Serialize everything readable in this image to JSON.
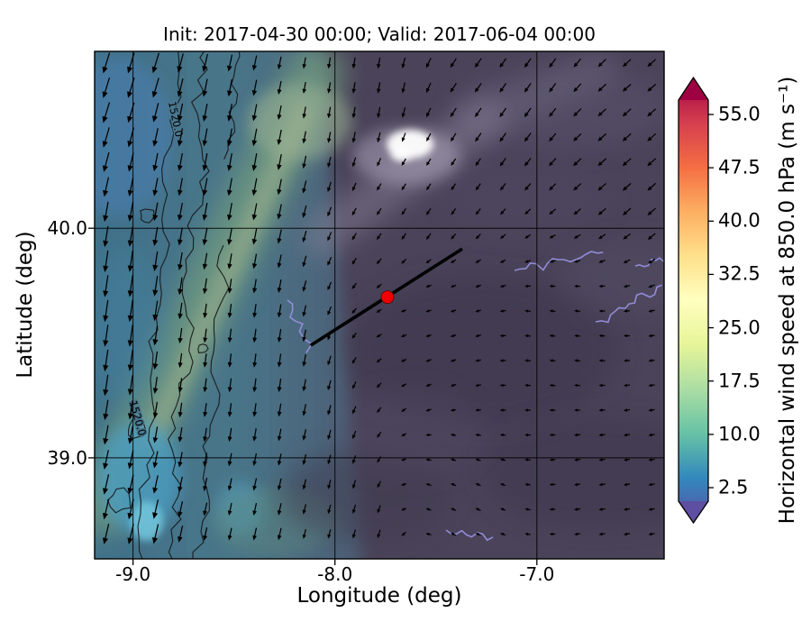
{
  "figure": {
    "title": "Init: 2017-04-30 00:00; Valid: 2017-06-04 00:00",
    "xlabel": "Longitude (deg)",
    "ylabel": "Latitude (deg)"
  },
  "chart_data": {
    "type": "heatmap",
    "title": "Init: 2017-04-30 00:00; Valid: 2017-06-04 00:00",
    "xlabel": "Longitude (deg)",
    "ylabel": "Latitude (deg)",
    "xlim": [
      -9.19,
      -6.37
    ],
    "ylim": [
      38.56,
      40.77
    ],
    "x_ticks": [
      -9.0,
      -8.0,
      -7.0
    ],
    "x_tick_labels": [
      "-9.0",
      "-8.0",
      "-7.0"
    ],
    "y_ticks": [
      39.0,
      40.0
    ],
    "y_tick_labels": [
      "39.0",
      "40.0"
    ],
    "grid": true,
    "field": "horizontal wind speed at 850.0 hPa",
    "colorbar": {
      "label": "Horizontal wind speed at 850.0 hPa (m s⁻¹)",
      "orientation": "vertical",
      "extend": "both",
      "ticks": [
        2.5,
        10.0,
        17.5,
        25.0,
        32.5,
        40.0,
        47.5,
        55.0
      ],
      "tick_labels": [
        "2.5",
        "10.0",
        "17.5",
        "25.0",
        "32.5",
        "40.0",
        "47.5",
        "55.0"
      ],
      "colors": [
        "#5e4fa2",
        "#3288bd",
        "#66c2a5",
        "#abdda4",
        "#e6f598",
        "#ffffbf",
        "#fee08b",
        "#fdae61",
        "#f46d43",
        "#d53e4f",
        "#9e0142"
      ]
    },
    "contour_labels": [
      "1520.0",
      "1520.0"
    ],
    "marker": {
      "lon": -7.74,
      "lat": 39.7,
      "color": "#f00000",
      "shape": "circle"
    },
    "cross_section": {
      "from": {
        "lon": -8.12,
        "lat": 39.49
      },
      "to": {
        "lon": -7.37,
        "lat": 39.91
      },
      "color": "#000000"
    },
    "map_colors": {
      "base_low_wind": "#4a4359",
      "coastal_wind": "#497589",
      "band_wind": "#6e987f",
      "peak_patch": "#ffffff",
      "contour_line": "#141414",
      "low_wind_outline": "#978fdd"
    },
    "quiver": {
      "units": "m s⁻¹",
      "controls": [
        {
          "lon": -9.15,
          "lat": 40.7,
          "u": -4.0,
          "v": -13.0
        },
        {
          "lon": -9.15,
          "lat": 39.6,
          "u": -2.0,
          "v": -14.0
        },
        {
          "lon": -9.1,
          "lat": 38.6,
          "u": -3.0,
          "v": -13.0
        },
        {
          "lon": -8.6,
          "lat": 40.3,
          "u": -2.0,
          "v": -11.0
        },
        {
          "lon": -8.55,
          "lat": 39.4,
          "u": -1.0,
          "v": -8.0
        },
        {
          "lon": -8.4,
          "lat": 38.7,
          "u": -1.5,
          "v": -7.0
        },
        {
          "lon": -7.9,
          "lat": 40.6,
          "u": -1.0,
          "v": -6.0
        },
        {
          "lon": -7.2,
          "lat": 40.65,
          "u": -3.5,
          "v": -5.0
        },
        {
          "lon": -6.5,
          "lat": 40.4,
          "u": -4.5,
          "v": -4.0
        },
        {
          "lon": -7.6,
          "lat": 40.1,
          "u": -2.0,
          "v": -3.0
        },
        {
          "lon": -7.5,
          "lat": 39.65,
          "u": -2.0,
          "v": -0.6
        },
        {
          "lon": -6.9,
          "lat": 39.5,
          "u": -2.2,
          "v": 0.3
        },
        {
          "lon": -6.5,
          "lat": 39.0,
          "u": -2.4,
          "v": -0.4
        },
        {
          "lon": -7.4,
          "lat": 38.8,
          "u": -1.8,
          "v": 0.8
        },
        {
          "lon": -8.0,
          "lat": 38.65,
          "u": -1.2,
          "v": -4.5
        }
      ]
    }
  }
}
